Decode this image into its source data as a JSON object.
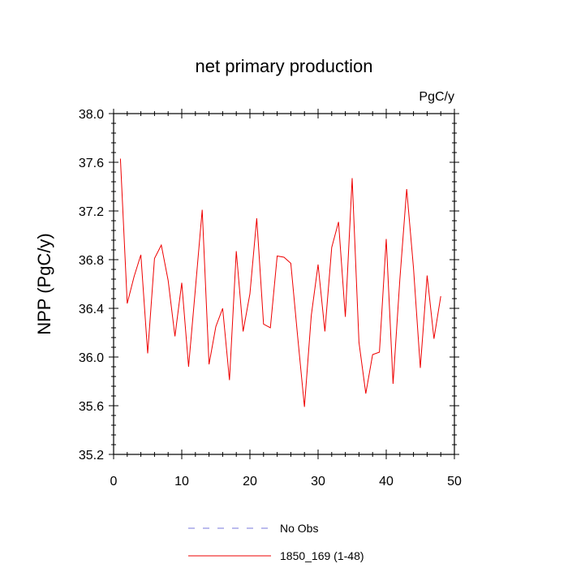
{
  "chart_data": {
    "type": "line",
    "title": "net primary production",
    "units_label": "PgC/y",
    "xlabel": "",
    "ylabel": "NPP  (PgC/y)",
    "xlim": [
      0,
      50
    ],
    "ylim": [
      35.2,
      38.0
    ],
    "x_ticks": [
      0,
      10,
      20,
      30,
      40,
      50
    ],
    "x_tick_labels": [
      "0",
      "10",
      "20",
      "30",
      "40",
      "50"
    ],
    "y_ticks": [
      35.2,
      35.6,
      36.0,
      36.4,
      36.8,
      37.2,
      37.6,
      38.0
    ],
    "y_tick_labels": [
      "35.2",
      "35.6",
      "36.0",
      "36.4",
      "36.8",
      "37.2",
      "37.6",
      "38.0"
    ],
    "grid": false,
    "legend_position": "bottom",
    "series": [
      {
        "name": "No Obs",
        "color": "#7777dd",
        "style": "dashed",
        "x": [],
        "values": []
      },
      {
        "name": "1850_169 (1-48)",
        "color": "#ee0000",
        "style": "solid",
        "x": [
          1,
          2,
          3,
          4,
          5,
          6,
          7,
          8,
          9,
          10,
          11,
          12,
          13,
          14,
          15,
          16,
          17,
          18,
          19,
          20,
          21,
          22,
          23,
          24,
          25,
          26,
          27,
          28,
          29,
          30,
          31,
          32,
          33,
          34,
          35,
          36,
          37,
          38,
          39,
          40,
          41,
          42,
          43,
          44,
          45,
          46,
          47,
          48
        ],
        "values": [
          37.63,
          36.44,
          36.66,
          36.84,
          36.03,
          36.81,
          36.92,
          36.63,
          36.17,
          36.61,
          35.92,
          36.56,
          37.21,
          35.94,
          36.25,
          36.4,
          35.81,
          36.87,
          36.21,
          36.52,
          37.14,
          36.27,
          36.24,
          36.83,
          36.82,
          36.77,
          36.17,
          35.59,
          36.34,
          36.76,
          36.21,
          36.9,
          37.11,
          36.33,
          37.47,
          36.12,
          35.7,
          36.02,
          36.04,
          36.97,
          35.78,
          36.64,
          37.38,
          36.73,
          35.91,
          36.67,
          36.15,
          36.5
        ]
      }
    ]
  }
}
